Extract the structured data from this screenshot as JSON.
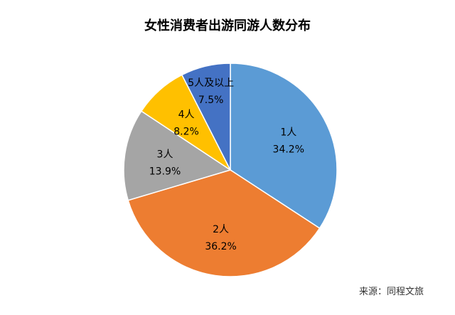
{
  "chart_data": {
    "type": "pie",
    "title": "女性消费者出游同游人数分布",
    "categories": [
      "1人",
      "2人",
      "3人",
      "4人",
      "5人及以上"
    ],
    "values": [
      34.2,
      36.2,
      13.9,
      8.2,
      7.5
    ],
    "value_labels": [
      "34.2%",
      "36.2%",
      "13.9%",
      "8.2%",
      "7.5%"
    ],
    "colors": [
      "#5B9BD5",
      "#ED7D31",
      "#A5A5A5",
      "#FFC000",
      "#4472C4"
    ],
    "start_angle": "12 o'clock",
    "direction": "clockwise",
    "legend": "none",
    "source": "来源：同程文旅"
  }
}
